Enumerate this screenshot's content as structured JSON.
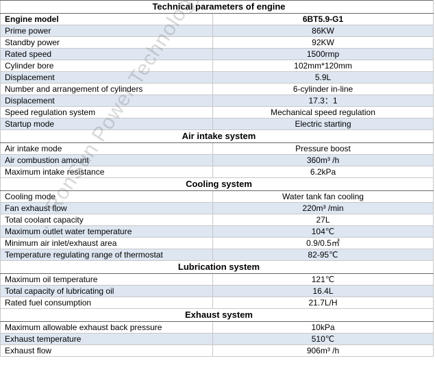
{
  "title": "Technical parameters of engine",
  "watermark": "... RonSun Power Technology Co.,",
  "sections": [
    {
      "rows": [
        {
          "label": "Engine model",
          "value": "6BT5.9-G1",
          "bold": true
        },
        {
          "label": "Prime power",
          "value": "86KW"
        },
        {
          "label": "Standby power",
          "value": "92KW"
        },
        {
          "label": "Rated speed",
          "value": "1500rmp"
        },
        {
          "label": "Cylinder bore",
          "value": "102mm*120mm"
        },
        {
          "label": "Displacement",
          "value": "5.9L"
        },
        {
          "label": "Number and arrangement of cylinders",
          "value": "6-cylinder in-line"
        },
        {
          "label": "Displacement",
          "value": "17.3：1"
        },
        {
          "label": "Speed regulation system",
          "value": "Mechanical speed regulation"
        },
        {
          "label": "Startup mode",
          "value": "Electric starting"
        }
      ]
    },
    {
      "heading": "Air intake system",
      "rows": [
        {
          "label": "Air intake mode",
          "value": "Pressure boost"
        },
        {
          "label": "Air combustion amount",
          "value": "360m³ /h"
        },
        {
          "label": "Maximum intake resistance",
          "value": "6.2kPa"
        }
      ]
    },
    {
      "heading": "Cooling system",
      "rows": [
        {
          "label": "Cooling mode",
          "value": "Water tank fan cooling"
        },
        {
          "label": "Fan exhaust flow",
          "value": "220m³  /min"
        },
        {
          "label": "Total coolant capacity",
          "value": "27L"
        },
        {
          "label": "Maximum outlet water temperature",
          "value": "104℃"
        },
        {
          "label": "Minimum air inlet/exhaust area",
          "value": "0.9/0.5㎡"
        },
        {
          "label": "Temperature regulating range of thermostat",
          "value": "82-95℃"
        }
      ]
    },
    {
      "heading": "Lubrication system",
      "rows": [
        {
          "label": "Maximum oil temperature",
          "value": "121℃"
        },
        {
          "label": "Total capacity of lubricating oil",
          "value": "16.4L"
        },
        {
          "label": "Rated fuel consumption",
          "value": "21.7L/H"
        }
      ]
    },
    {
      "heading": "Exhaust system",
      "rows": [
        {
          "label": "Maximum allowable exhaust back pressure",
          "value": "10kPa"
        },
        {
          "label": "Exhaust temperature",
          "value": "510℃"
        },
        {
          "label": "Exhaust flow",
          "value": "906m³ /h"
        }
      ]
    }
  ]
}
